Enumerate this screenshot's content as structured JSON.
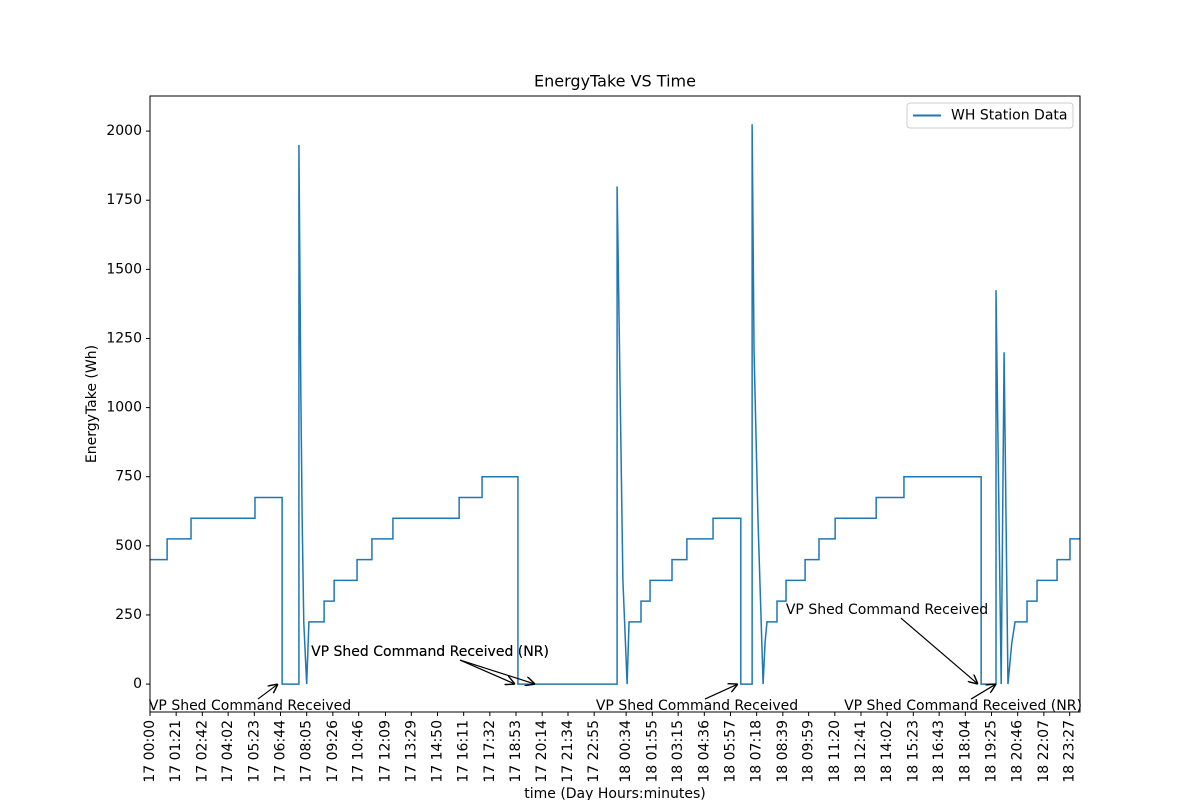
{
  "chart_data": {
    "type": "line",
    "title": "EnergyTake VS Time",
    "x_label": "time (Day Hours:minutes)",
    "y_label": "EnergyTake (Wh)",
    "x": [
      "17 00:00",
      "17 00:53",
      "17 00:53",
      "17 02:07",
      "17 02:07",
      "17 05:25",
      "17 05:25",
      "17 06:49",
      "17 06:49",
      "17 07:41",
      "17 07:41",
      "17 07:47",
      "17 07:51",
      "17 07:56",
      "17 08:05",
      "17 08:12",
      "17 08:59",
      "17 08:59",
      "17 09:30",
      "17 09:30",
      "17 10:41",
      "17 10:41",
      "17 11:27",
      "17 11:27",
      "17 12:32",
      "17 12:32",
      "17 15:57",
      "17 15:57",
      "17 17:08",
      "17 17:08",
      "17 18:59",
      "17 18:59",
      "18 00:06",
      "18 00:06",
      "18 00:24",
      "18 00:37",
      "18 00:43",
      "18 01:20",
      "18 01:20",
      "18 01:48",
      "18 01:48",
      "18 02:56",
      "18 02:56",
      "18 03:42",
      "18 03:42",
      "18 05:03",
      "18 05:03",
      "18 06:29",
      "18 06:29",
      "18 07:04",
      "18 07:04",
      "18 07:10",
      "18 07:22",
      "18 07:28",
      "18 07:38",
      "18 07:44",
      "18 07:50",
      "18 08:21",
      "18 08:21",
      "18 08:49",
      "18 08:49",
      "18 09:48",
      "18 09:48",
      "18 10:31",
      "18 10:31",
      "18 11:21",
      "18 11:21",
      "18 13:28",
      "18 13:28",
      "18 14:54",
      "18 14:54",
      "18 18:53",
      "18 18:53",
      "18 19:39",
      "18 19:39",
      "18 19:55",
      "18 20:04",
      "18 20:16",
      "18 20:22",
      "18 20:28",
      "18 20:38",
      "18 21:15",
      "18 21:15",
      "18 21:46",
      "18 21:46",
      "18 22:48",
      "18 22:48",
      "18 23:28",
      "18 23:28",
      "18 23:59"
    ],
    "series": [
      {
        "name": "WH Station Data",
        "color": "#1f77b4",
        "values": [
          450,
          450,
          525,
          525,
          600,
          600,
          675,
          675,
          0,
          0,
          1950,
          1050,
          600,
          225,
          0,
          225,
          225,
          300,
          300,
          375,
          375,
          450,
          450,
          525,
          525,
          600,
          600,
          675,
          675,
          750,
          750,
          0,
          0,
          1800,
          375,
          0,
          225,
          225,
          300,
          300,
          375,
          375,
          450,
          450,
          525,
          525,
          600,
          600,
          0,
          0,
          2025,
          1200,
          600,
          375,
          0,
          150,
          225,
          225,
          300,
          300,
          375,
          375,
          450,
          450,
          525,
          525,
          600,
          600,
          675,
          675,
          750,
          750,
          0,
          0,
          1425,
          0,
          1200,
          0,
          75,
          150,
          225,
          225,
          300,
          300,
          375,
          375,
          450,
          450,
          525,
          525
        ]
      }
    ],
    "xlim": [
      "17 00:00",
      "18 23:59"
    ],
    "xticks": [
      "17 00:00",
      "17 01:21",
      "17 02:42",
      "17 04:02",
      "17 05:23",
      "17 06:44",
      "17 08:05",
      "17 09:26",
      "17 10:46",
      "17 12:09",
      "17 13:29",
      "17 14:50",
      "17 16:11",
      "17 17:32",
      "17 18:53",
      "17 20:14",
      "17 21:34",
      "17 22:55",
      "18 00:34",
      "18 01:55",
      "18 03:15",
      "18 04:36",
      "18 05:57",
      "18 07:18",
      "18 08:39",
      "18 09:59",
      "18 11:20",
      "18 12:41",
      "18 14:02",
      "18 15:23",
      "18 16:43",
      "18 18:04",
      "18 19:25",
      "18 20:46",
      "18 22:07",
      "18 23:27"
    ],
    "ylim": [
      -101,
      2127
    ],
    "yticks": [
      0,
      250,
      500,
      750,
      1000,
      1250,
      1500,
      1750,
      2000
    ],
    "grid": false,
    "legend": "upper right",
    "annotations": [
      {
        "text": "VP Shed Command Received",
        "x": "17 06:36",
        "y": 0
      },
      {
        "text": "VP Shed Command Received (NR)",
        "x": "17 18:50",
        "y": 0
      },
      {
        "text": "VP Shed Command Received (NR)",
        "x": "17 19:52",
        "y": 0
      },
      {
        "text": "VP Shed Command Received",
        "x": "18 06:20",
        "y": 0
      },
      {
        "text": "VP Shed Command Received",
        "x": "18 18:43",
        "y": 0
      },
      {
        "text": "VP Shed Command Received (NR)",
        "x": "18 19:39",
        "y": 0
      }
    ]
  }
}
